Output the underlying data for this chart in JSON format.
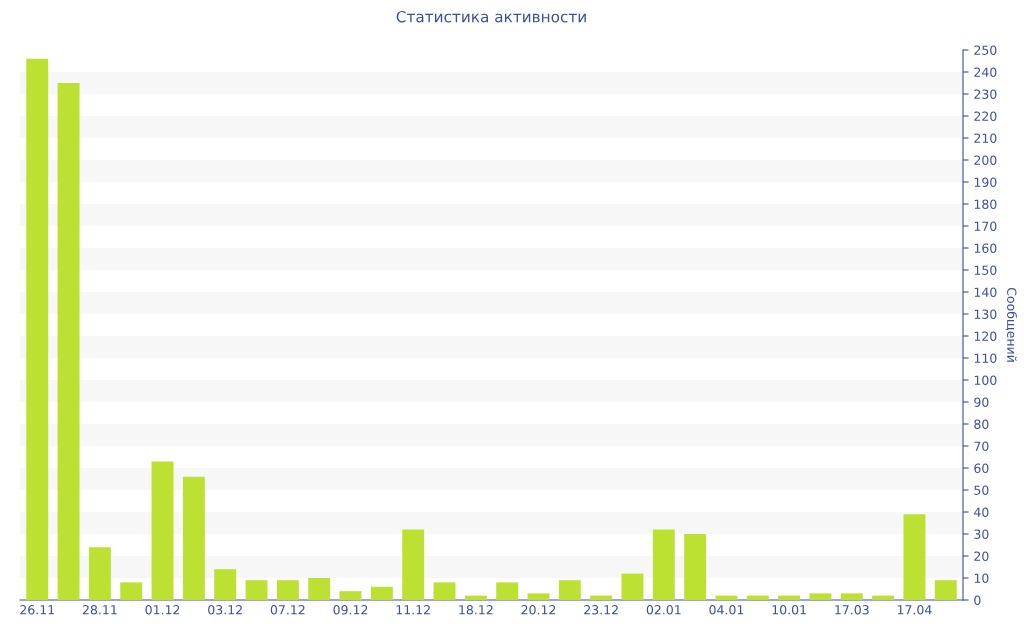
{
  "chart_data": {
    "type": "bar",
    "title": "Статистика активности",
    "ylabel": "Сообщений",
    "categories": [
      "26.11",
      null,
      "28.11",
      null,
      "01.12",
      null,
      "03.12",
      null,
      "07.12",
      null,
      "09.12",
      null,
      "11.12",
      null,
      "18.12",
      null,
      "20.12",
      null,
      "23.12",
      null,
      "02.01",
      null,
      "04.01",
      null,
      "10.01",
      null,
      "17.03",
      null,
      "17.04",
      null
    ],
    "values": [
      246,
      235,
      24,
      8,
      63,
      56,
      14,
      9,
      9,
      10,
      4,
      6,
      32,
      8,
      2,
      8,
      3,
      9,
      2,
      12,
      32,
      30,
      2,
      2,
      2,
      3,
      3,
      2,
      39,
      9
    ],
    "color": "#bde132",
    "ylim": [
      0,
      250
    ],
    "yticks": [
      0,
      10,
      20,
      30,
      40,
      50,
      60,
      70,
      80,
      90,
      100,
      110,
      120,
      130,
      140,
      150,
      160,
      170,
      180,
      190,
      200,
      210,
      220,
      230,
      240,
      250
    ],
    "bands": [
      {
        "axis": "y",
        "from": 10,
        "to": 20,
        "color": "#f7f7f7"
      },
      {
        "axis": "y",
        "from": 30,
        "to": 40,
        "color": "#f7f7f7"
      },
      {
        "axis": "y",
        "from": 50,
        "to": 60,
        "color": "#f7f7f7"
      },
      {
        "axis": "y",
        "from": 70,
        "to": 80,
        "color": "#f7f7f7"
      },
      {
        "axis": "y",
        "from": 90,
        "to": 100,
        "color": "#f7f7f7"
      },
      {
        "axis": "y",
        "from": 110,
        "to": 120,
        "color": "#f7f7f7"
      },
      {
        "axis": "y",
        "from": 130,
        "to": 140,
        "color": "#f7f7f7"
      },
      {
        "axis": "y",
        "from": 150,
        "to": 160,
        "color": "#f7f7f7"
      },
      {
        "axis": "y",
        "from": 170,
        "to": 180,
        "color": "#f7f7f7"
      },
      {
        "axis": "y",
        "from": 190,
        "to": 200,
        "color": "#f7f7f7"
      },
      {
        "axis": "y",
        "from": 210,
        "to": 220,
        "color": "#f7f7f7"
      },
      {
        "axis": "y",
        "from": 230,
        "to": 240,
        "color": "#f7f7f7"
      }
    ],
    "legend": false
  }
}
